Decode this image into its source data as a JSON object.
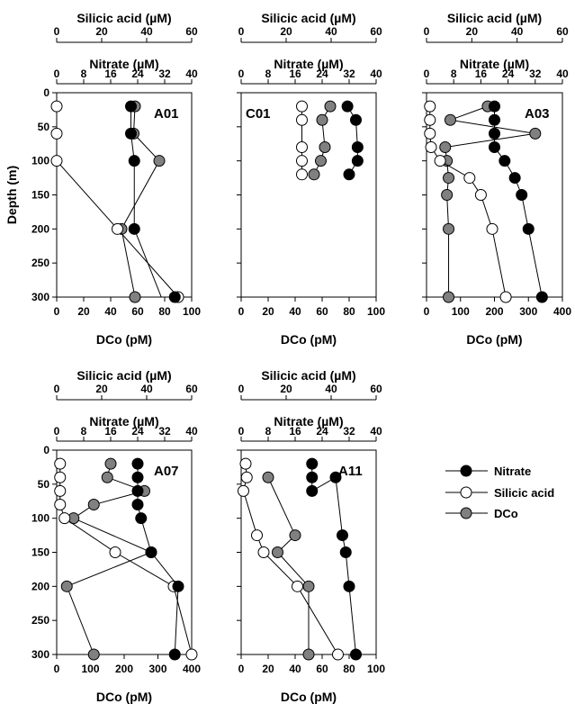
{
  "chart_data": {
    "type": "scatter",
    "shared": {
      "silicic_label": "Silicic acid (µM)",
      "nitrate_label": "Nitrate (µM)",
      "dco_label": "DCo (pM)",
      "depth_label": "Depth (m)",
      "silicic_ticks": [
        "0",
        "20",
        "40",
        "60"
      ],
      "nitrate_ticks": [
        "0",
        "8",
        "16",
        "24",
        "32",
        "40"
      ],
      "depth_ticks": [
        "0",
        "50",
        "100",
        "150",
        "200",
        "250",
        "300"
      ],
      "silicic_range": [
        0,
        60
      ],
      "nitrate_range": [
        0,
        40
      ],
      "depth_range": [
        0,
        300
      ],
      "colors": {
        "nitrate": "#000000",
        "silicic": "#ffffff",
        "dco": "#808080"
      }
    },
    "legend": {
      "items": [
        {
          "key": "nitrate",
          "label": "Nitrate"
        },
        {
          "key": "silicic",
          "label": "Silicic acid"
        },
        {
          "key": "dco",
          "label": "DCo"
        }
      ]
    },
    "panels": [
      {
        "name": "A01",
        "dco_range": [
          0,
          100
        ],
        "dco_ticks": [
          "0",
          "20",
          "40",
          "60",
          "80",
          "100"
        ],
        "nitrate": {
          "x": [
            22,
            22,
            23,
            23,
            31,
            35
          ],
          "depth": [
            20,
            60,
            100,
            200,
            300,
            300
          ],
          "markers": [
            0,
            1,
            2,
            3,
            5
          ],
          "lines_to": 300
        },
        "silicic": {
          "x": [
            0,
            0,
            0,
            27,
            54
          ],
          "depth": [
            20,
            60,
            100,
            200,
            300
          ]
        },
        "dco": {
          "x": [
            58,
            57,
            76,
            48,
            58
          ],
          "depth": [
            20,
            60,
            100,
            200,
            300
          ]
        }
      },
      {
        "name": "C01",
        "dco_range": [
          0,
          100
        ],
        "dco_ticks": [
          "0",
          "20",
          "40",
          "60",
          "80",
          "100"
        ],
        "nitrate": {
          "x": [
            31.5,
            34,
            34.5,
            34.5,
            32
          ],
          "depth": [
            20,
            40,
            80,
            100,
            120
          ]
        },
        "silicic": {
          "x": [
            27,
            27,
            27,
            27,
            27
          ],
          "depth": [
            20,
            40,
            80,
            100,
            120
          ]
        },
        "dco": {
          "x": [
            66,
            60,
            62,
            59,
            54
          ],
          "depth": [
            20,
            40,
            80,
            100,
            120
          ]
        }
      },
      {
        "name": "A03",
        "dco_range": [
          0,
          400
        ],
        "dco_ticks": [
          "0",
          "100",
          "200",
          "300",
          "400"
        ],
        "nitrate": {
          "x": [
            20,
            20,
            20,
            20,
            23,
            26,
            28,
            30,
            34
          ],
          "depth": [
            20,
            40,
            60,
            80,
            100,
            125,
            150,
            200,
            300
          ]
        },
        "silicic": {
          "x": [
            1.5,
            1.5,
            1.5,
            2,
            6,
            19,
            24,
            29,
            35
          ],
          "depth": [
            20,
            40,
            60,
            80,
            100,
            125,
            150,
            200,
            300
          ]
        },
        "dco": {
          "x": [
            180,
            70,
            320,
            55,
            60,
            65,
            60,
            65,
            65
          ],
          "depth": [
            20,
            40,
            60,
            80,
            100,
            125,
            150,
            200,
            300
          ]
        }
      },
      {
        "name": "A07",
        "dco_range": [
          0,
          400
        ],
        "dco_ticks": [
          "0",
          "100",
          "200",
          "300",
          "400"
        ],
        "nitrate": {
          "x": [
            24,
            24,
            24,
            24,
            25,
            28,
            36,
            35
          ],
          "depth": [
            20,
            40,
            60,
            80,
            100,
            150,
            200,
            300
          ]
        },
        "silicic": {
          "x": [
            1.5,
            1.5,
            1.5,
            1.5,
            3.5,
            26,
            52,
            60
          ],
          "depth": [
            20,
            40,
            60,
            80,
            100,
            150,
            200,
            300
          ]
        },
        "dco": {
          "x": [
            160,
            150,
            260,
            110,
            50,
            280,
            30,
            110
          ],
          "depth": [
            20,
            40,
            60,
            80,
            100,
            150,
            200,
            300
          ]
        }
      },
      {
        "name": "A11",
        "dco_range": [
          0,
          100
        ],
        "dco_ticks": [
          "0",
          "20",
          "40",
          "60",
          "80",
          "100"
        ],
        "nitrate": {
          "x": [
            21,
            21,
            21,
            28,
            30,
            31,
            32,
            34
          ],
          "depth": [
            20,
            40,
            60,
            40,
            125,
            150,
            200,
            300
          ]
        },
        "silicic": {
          "x": [
            2,
            2.5,
            1,
            7,
            10,
            25,
            43
          ],
          "depth": [
            20,
            40,
            60,
            125,
            150,
            200,
            300
          ]
        },
        "dco": {
          "x": [
            20,
            40,
            27,
            50,
            50
          ],
          "depth": [
            40,
            125,
            150,
            200,
            300
          ]
        }
      }
    ]
  }
}
